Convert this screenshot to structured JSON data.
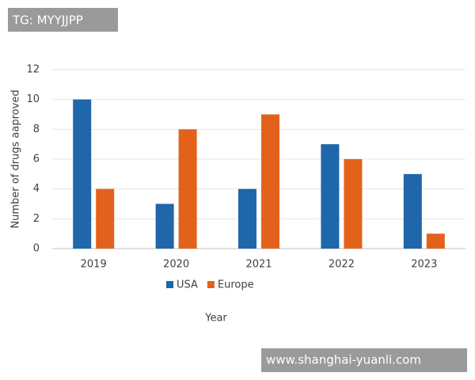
{
  "chart_data": {
    "type": "bar",
    "x_label": "Year",
    "y_label": "Number of drugs aaproved",
    "categories": [
      "2019",
      "2020",
      "2021",
      "2022",
      "2023"
    ],
    "series": [
      {
        "name": "USA",
        "color": "#1f66ab",
        "values": [
          10,
          3,
          4,
          7,
          5
        ]
      },
      {
        "name": "Europe",
        "color": "#e2621c",
        "values": [
          4,
          8,
          9,
          6,
          1
        ]
      }
    ],
    "ylim": [
      0,
      12
    ],
    "yticks": [
      0,
      2,
      4,
      6,
      8,
      10,
      12
    ],
    "grid": true,
    "legend": "bottom"
  },
  "watermarks": {
    "top_left": "TG: MYYJJPP",
    "bottom_right": "www.shanghai-yuanli.com"
  }
}
